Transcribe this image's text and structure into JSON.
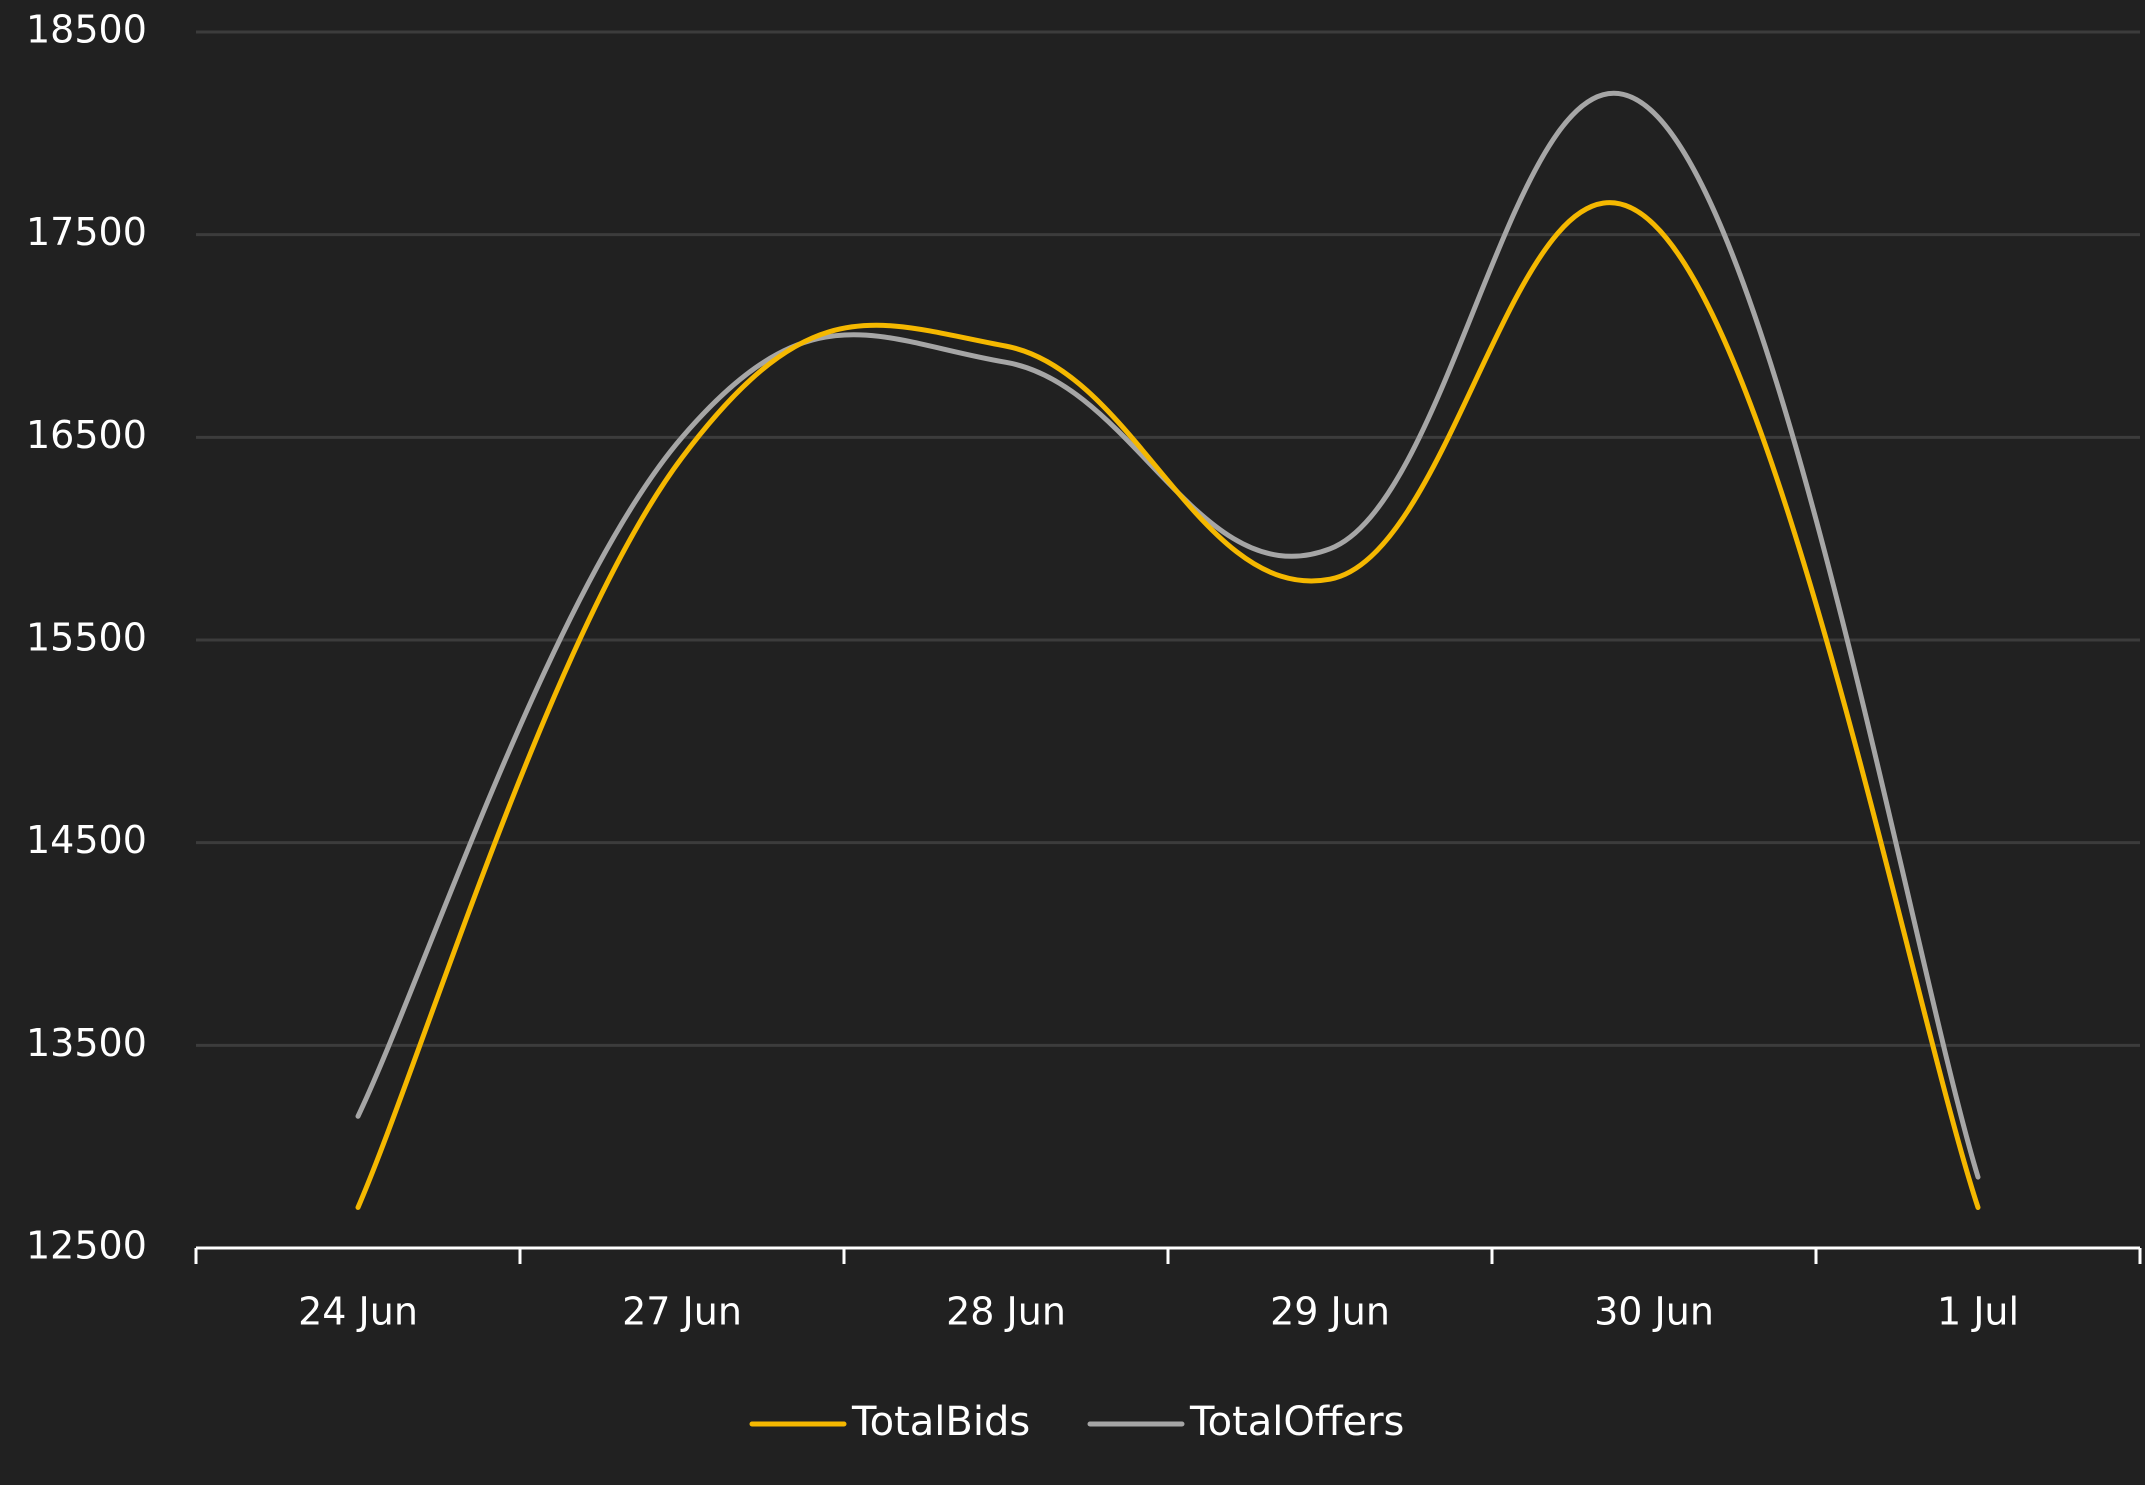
{
  "chart_data": {
    "type": "line",
    "categories": [
      "24 Jun",
      "27 Jun",
      "28 Jun",
      "29 Jun",
      "30 Jun",
      "1 Jul"
    ],
    "series": [
      {
        "name": "TotalBids",
        "color": "#f5b800",
        "values": [
          12700,
          16400,
          16950,
          15800,
          17550,
          12700
        ]
      },
      {
        "name": "TotalOffers",
        "color": "#a6a6a6",
        "values": [
          13150,
          16500,
          16870,
          15950,
          18100,
          12850
        ]
      }
    ],
    "ylim": [
      12500,
      18500
    ],
    "yticks": [
      12500,
      13500,
      14500,
      15500,
      16500,
      17500,
      18500
    ],
    "xlabel": "",
    "ylabel": "",
    "title": "",
    "grid": true,
    "legend_position": "bottom-center",
    "colors": {
      "background": "#212121",
      "grid": "#3c3c3c",
      "axis": "#ffffff",
      "text": "#ffffff"
    }
  }
}
